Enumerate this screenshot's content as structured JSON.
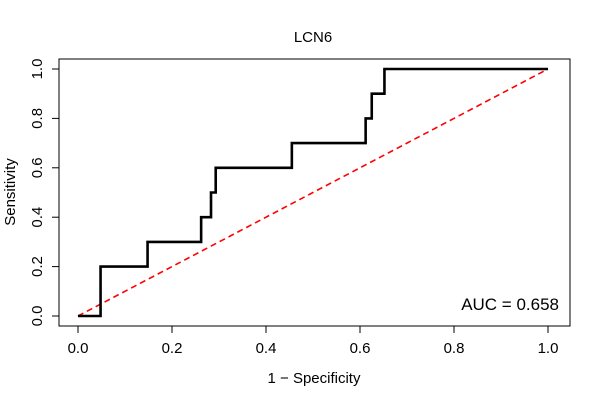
{
  "chart_data": {
    "type": "line",
    "title": "LCN6",
    "xlabel": "1 − Specificity",
    "ylabel": "Sensitivity",
    "xlim": [
      0,
      1
    ],
    "ylim": [
      0,
      1
    ],
    "x_ticks": [
      0.0,
      0.2,
      0.4,
      0.6,
      0.8,
      1.0
    ],
    "x_tick_labels": [
      "0.0",
      "0.2",
      "0.4",
      "0.6",
      "0.8",
      "1.0"
    ],
    "y_ticks": [
      0.0,
      0.2,
      0.4,
      0.6,
      0.8,
      1.0
    ],
    "y_tick_labels": [
      "0.0",
      "0.2",
      "0.4",
      "0.6",
      "0.8",
      "1.0"
    ],
    "grid": false,
    "series": [
      {
        "color": "#000000",
        "style": "solid-step",
        "points": [
          [
            0.0,
            0.0
          ],
          [
            0.048,
            0.0
          ],
          [
            0.048,
            0.2
          ],
          [
            0.148,
            0.2
          ],
          [
            0.148,
            0.3
          ],
          [
            0.262,
            0.3
          ],
          [
            0.262,
            0.4
          ],
          [
            0.283,
            0.4
          ],
          [
            0.283,
            0.5
          ],
          [
            0.293,
            0.5
          ],
          [
            0.293,
            0.6
          ],
          [
            0.455,
            0.6
          ],
          [
            0.455,
            0.7
          ],
          [
            0.612,
            0.7
          ],
          [
            0.612,
            0.8
          ],
          [
            0.625,
            0.8
          ],
          [
            0.625,
            0.9
          ],
          [
            0.652,
            0.9
          ],
          [
            0.652,
            1.0
          ],
          [
            1.0,
            1.0
          ]
        ]
      },
      {
        "color": "#ff0000",
        "style": "dashed",
        "points": [
          [
            0.0,
            0.0
          ],
          [
            1.0,
            1.0
          ]
        ]
      }
    ],
    "annotations": [
      {
        "text": "AUC = 0.658",
        "position": "bottom-right"
      }
    ]
  }
}
